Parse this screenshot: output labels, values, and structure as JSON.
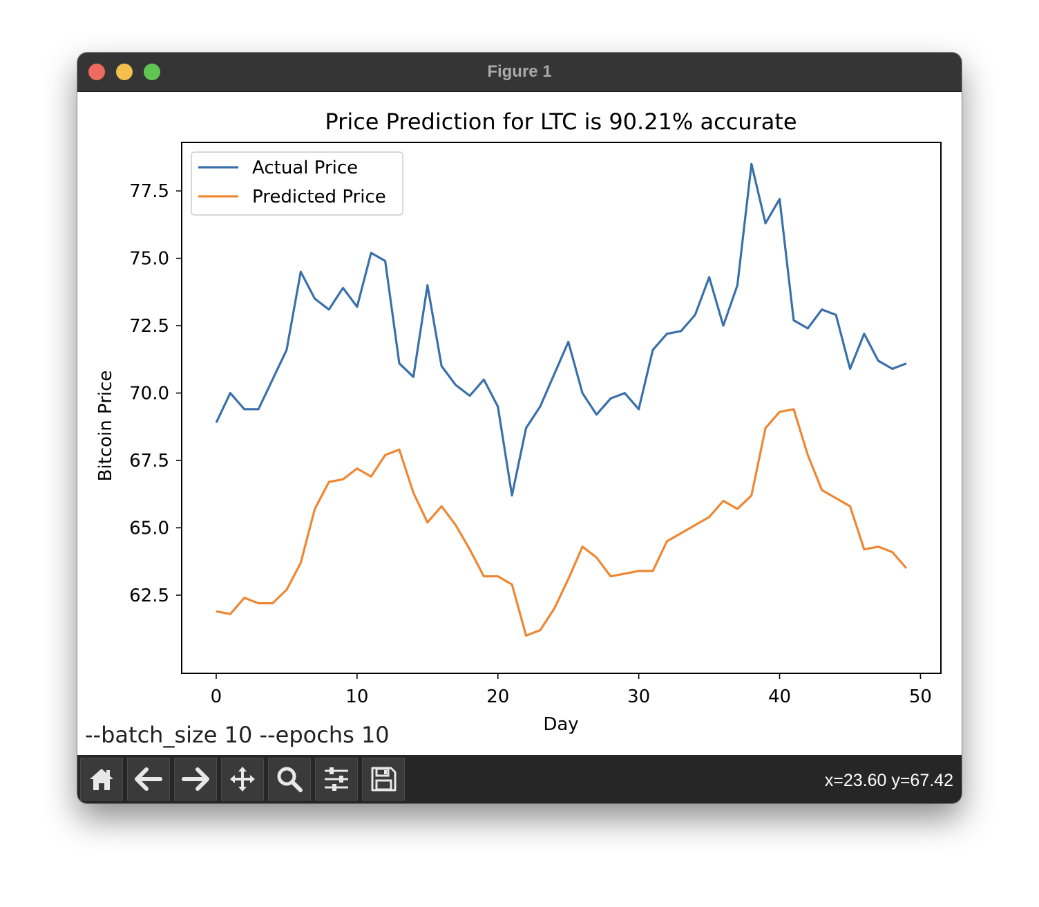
{
  "window": {
    "title": "Figure 1"
  },
  "footnote": "--batch_size 10 --epochs 10",
  "toolbar": {
    "coords": "x=23.60 y=67.42",
    "tools": [
      "home-icon",
      "back-arrow-icon",
      "forward-arrow-icon",
      "pan-icon",
      "zoom-icon",
      "configure-subplots-icon",
      "save-icon"
    ]
  },
  "colors": {
    "actual": "#3a70aa",
    "predicted": "#ee8733"
  },
  "chart_data": {
    "type": "line",
    "title": "Price Prediction for LTC is 90.21% accurate",
    "xlabel": "Day",
    "ylabel": "Bitcoin Price",
    "xlim": [
      -2.45,
      51.45
    ],
    "ylim": [
      59.6,
      79.3
    ],
    "xticks": [
      0,
      10,
      20,
      30,
      40,
      50
    ],
    "xtick_labels": [
      "0",
      "10",
      "20",
      "30",
      "40",
      "50"
    ],
    "yticks": [
      62.5,
      65.0,
      67.5,
      70.0,
      72.5,
      75.0,
      77.5
    ],
    "ytick_labels": [
      "62.5",
      "65.0",
      "67.5",
      "70.0",
      "72.5",
      "75.0",
      "77.5"
    ],
    "grid": false,
    "legend_position": "upper-left",
    "x": [
      0,
      1,
      2,
      3,
      4,
      5,
      6,
      7,
      8,
      9,
      10,
      11,
      12,
      13,
      14,
      15,
      16,
      17,
      18,
      19,
      20,
      21,
      22,
      23,
      24,
      25,
      26,
      27,
      28,
      29,
      30,
      31,
      32,
      33,
      34,
      35,
      36,
      37,
      38,
      39,
      40,
      41,
      42,
      43,
      44,
      45,
      46,
      47,
      48,
      49
    ],
    "series": [
      {
        "name": "Actual Price",
        "color": "#3a70aa",
        "values": [
          68.9,
          70.0,
          69.4,
          69.4,
          70.5,
          71.6,
          74.5,
          73.5,
          73.1,
          73.9,
          73.2,
          75.2,
          74.9,
          71.1,
          70.6,
          74.0,
          71.0,
          70.3,
          69.9,
          70.5,
          69.5,
          66.2,
          68.7,
          69.5,
          70.7,
          71.9,
          70.0,
          69.2,
          69.8,
          70.0,
          69.4,
          71.6,
          72.2,
          72.3,
          72.9,
          74.3,
          72.5,
          74.0,
          78.5,
          76.3,
          77.2,
          72.7,
          72.4,
          73.1,
          72.9,
          70.9,
          72.2,
          71.2,
          70.9,
          71.1
        ]
      },
      {
        "name": "Predicted Price",
        "color": "#ee8733",
        "values": [
          61.9,
          61.8,
          62.4,
          62.2,
          62.2,
          62.7,
          63.7,
          65.7,
          66.7,
          66.8,
          67.2,
          66.9,
          67.7,
          67.9,
          66.3,
          65.2,
          65.8,
          65.1,
          64.2,
          63.2,
          63.2,
          62.9,
          61.0,
          61.2,
          62.0,
          63.1,
          64.3,
          63.9,
          63.2,
          63.3,
          63.4,
          63.4,
          64.5,
          64.8,
          65.1,
          65.4,
          66.0,
          65.7,
          66.2,
          68.7,
          69.3,
          69.4,
          67.7,
          66.4,
          66.1,
          65.8,
          64.2,
          64.3,
          64.1,
          63.5
        ]
      }
    ]
  }
}
